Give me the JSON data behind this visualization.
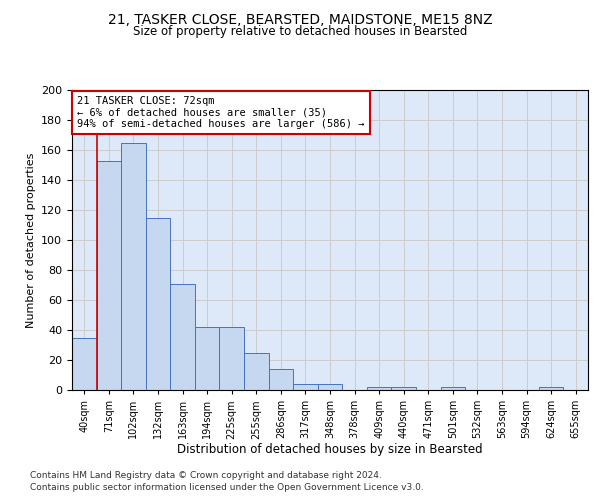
{
  "title_line1": "21, TASKER CLOSE, BEARSTED, MAIDSTONE, ME15 8NZ",
  "title_line2": "Size of property relative to detached houses in Bearsted",
  "xlabel": "Distribution of detached houses by size in Bearsted",
  "ylabel": "Number of detached properties",
  "bar_labels": [
    "40sqm",
    "71sqm",
    "102sqm",
    "132sqm",
    "163sqm",
    "194sqm",
    "225sqm",
    "255sqm",
    "286sqm",
    "317sqm",
    "348sqm",
    "378sqm",
    "409sqm",
    "440sqm",
    "471sqm",
    "501sqm",
    "532sqm",
    "563sqm",
    "594sqm",
    "624sqm",
    "655sqm"
  ],
  "bar_values": [
    35,
    153,
    165,
    115,
    71,
    42,
    42,
    25,
    14,
    4,
    4,
    0,
    2,
    2,
    0,
    2,
    0,
    0,
    0,
    2,
    0
  ],
  "bar_color": "#c5d8f0",
  "bar_edge_color": "#4472c4",
  "annotation_text": "21 TASKER CLOSE: 72sqm\n← 6% of detached houses are smaller (35)\n94% of semi-detached houses are larger (586) →",
  "annotation_box_color": "#ffffff",
  "annotation_box_edge_color": "#cc0000",
  "vline_color": "#cc0000",
  "ylim": [
    0,
    200
  ],
  "yticks": [
    0,
    20,
    40,
    60,
    80,
    100,
    120,
    140,
    160,
    180,
    200
  ],
  "footer_line1": "Contains HM Land Registry data © Crown copyright and database right 2024.",
  "footer_line2": "Contains public sector information licensed under the Open Government Licence v3.0.",
  "bg_color": "#ffffff",
  "grid_color": "#cccccc",
  "axes_bg_color": "#dde9f8"
}
